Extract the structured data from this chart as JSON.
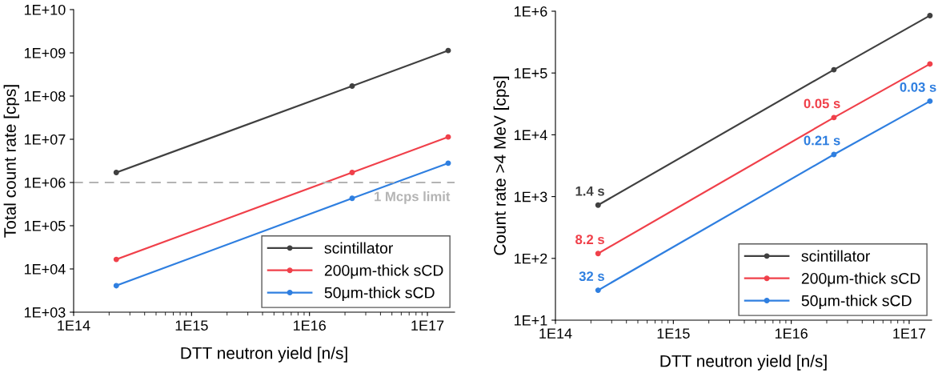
{
  "chart_data": [
    {
      "type": "line",
      "xlabel": "DTT neutron yield [n/s]",
      "ylabel": "Total count rate [cps]",
      "log": "xy",
      "marker": "circle",
      "legend": "bottom right",
      "grid": false,
      "x": [
        230000000000000.0,
        2.3e+16,
        1.5e+17
      ],
      "xlim": [
        100000000000000.0,
        1.7e+17
      ],
      "xticks": [
        {
          "value": 100000000000000.0,
          "label": "1E14"
        },
        {
          "value": 1000000000000000.0,
          "label": "1E15"
        },
        {
          "value": 1e+16,
          "label": "1E16"
        },
        {
          "value": 1e+17,
          "label": "1E17"
        }
      ],
      "ylim": [
        1000.0,
        10000000000.0
      ],
      "yticks": [
        {
          "value": 1000.0,
          "label": "1E+03"
        },
        {
          "value": 10000.0,
          "label": "1E+04"
        },
        {
          "value": 100000.0,
          "label": "1E+05"
        },
        {
          "value": 1000000.0,
          "label": "1E+06"
        },
        {
          "value": 10000000.0,
          "label": "1E+07"
        },
        {
          "value": 100000000.0,
          "label": "1E+08"
        },
        {
          "value": 1000000000.0,
          "label": "1E+09"
        },
        {
          "value": 10000000000.0,
          "label": "1E+10"
        }
      ],
      "ref_lines": [
        {
          "axis": "y",
          "value": 1000000.0,
          "label": "1 Mcps limit",
          "color": "#b4b4b4",
          "line_style": "dashed"
        }
      ],
      "series": [
        {
          "name": "scintillator",
          "color": "#404040",
          "values": [
            1700000.0,
            170000000.0,
            1130000000.0
          ]
        },
        {
          "name": "200μm-thick sCD",
          "color": "#f0404a",
          "values": [
            16600.0,
            1700000.0,
            11300000.0
          ]
        },
        {
          "name": "50μm-thick sCD",
          "color": "#2f7fe0",
          "values": [
            4100.0,
            430000.0,
            2800000.0
          ]
        }
      ]
    },
    {
      "type": "line",
      "xlabel": "DTT neutron yield [n/s]",
      "ylabel": "Count rate >4 MeV [cps]",
      "log": "xy",
      "marker": "circle",
      "legend": "bottom right",
      "grid": false,
      "x": [
        230000000000000.0,
        2.3e+16,
        1.5e+17
      ],
      "xlim": [
        100000000000000.0,
        1.55e+17
      ],
      "xticks": [
        {
          "value": 100000000000000.0,
          "label": "1E14"
        },
        {
          "value": 1000000000000000.0,
          "label": "1E15"
        },
        {
          "value": 1e+16,
          "label": "1E16"
        },
        {
          "value": 1e+17,
          "label": "1E17"
        }
      ],
      "ylim": [
        10.0,
        1000000.0
      ],
      "yticks": [
        {
          "value": 10.0,
          "label": "1E+1"
        },
        {
          "value": 100.0,
          "label": "1E+2"
        },
        {
          "value": 1000.0,
          "label": "1E+3"
        },
        {
          "value": 10000.0,
          "label": "1E+4"
        },
        {
          "value": 100000.0,
          "label": "1E+5"
        },
        {
          "value": 1000000.0,
          "label": "1E+6"
        }
      ],
      "series": [
        {
          "name": "scintillator",
          "color": "#404040",
          "values": [
            728,
            113000.0,
            850000.0
          ]
        },
        {
          "name": "200μm-thick sCD",
          "color": "#f0404a",
          "values": [
            120,
            19000.0,
            140000.0
          ]
        },
        {
          "name": "50μm-thick sCD",
          "color": "#2f7fe0",
          "values": [
            30.5,
            4800.0,
            35000.0
          ]
        }
      ],
      "annotations": [
        {
          "text": "1.4 s",
          "x": 230000000000000.0,
          "y": 728
        },
        {
          "text": "8.2 s",
          "x": 230000000000000.0,
          "y": 120
        },
        {
          "text": "0.05 s",
          "x": 2.3e+16,
          "y": 19000.0
        },
        {
          "text": "32 s",
          "x": 230000000000000.0,
          "y": 30.5
        },
        {
          "text": "0.21 s",
          "x": 2.3e+16,
          "y": 4800.0
        },
        {
          "text": "0.03 s",
          "x": 1.5e+17,
          "y": 35000.0
        }
      ]
    }
  ]
}
